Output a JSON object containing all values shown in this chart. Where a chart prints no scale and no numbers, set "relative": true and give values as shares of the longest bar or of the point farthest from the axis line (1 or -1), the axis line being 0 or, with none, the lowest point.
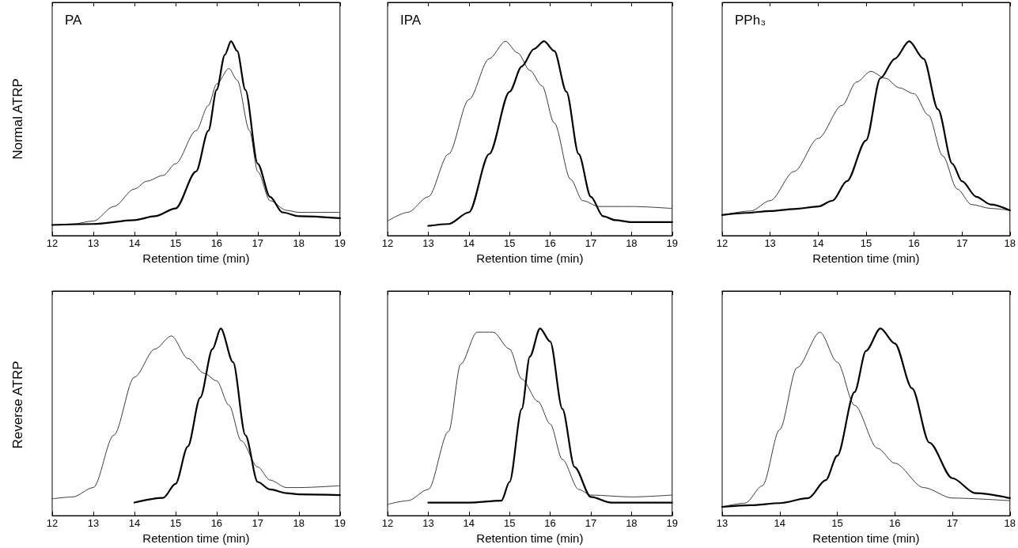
{
  "chart_data": [
    {
      "type": "line",
      "relative": true,
      "annotations": [
        "PA"
      ],
      "ylabel": "Normal ATRP",
      "xlabel": "Retention time (min)",
      "xlim": [
        12,
        19
      ],
      "xticks": [
        12,
        13,
        14,
        15,
        16,
        17,
        18,
        19
      ],
      "grid": false,
      "marker": "none",
      "line_style": "solid",
      "series": [
        {
          "color": "#000000",
          "x": [
            12,
            13,
            14,
            14.5,
            15,
            15.5,
            15.8,
            16.0,
            16.2,
            16.35,
            16.5,
            16.7,
            17.0,
            17.3,
            17.6,
            18,
            19
          ],
          "values": [
            0.055,
            0.06,
            0.08,
            0.1,
            0.14,
            0.33,
            0.54,
            0.75,
            0.93,
            1.0,
            0.95,
            0.75,
            0.37,
            0.2,
            0.12,
            0.1,
            0.09
          ]
        },
        {
          "color": "#3a3a3a",
          "x": [
            12,
            12.5,
            13,
            13.5,
            14,
            14.3,
            14.7,
            15,
            15.5,
            15.8,
            16.0,
            16.3,
            16.5,
            16.8,
            17.0,
            17.3,
            17.7,
            18,
            19
          ],
          "values": [
            0.055,
            0.06,
            0.075,
            0.15,
            0.24,
            0.28,
            0.31,
            0.37,
            0.54,
            0.67,
            0.78,
            0.86,
            0.8,
            0.54,
            0.33,
            0.18,
            0.13,
            0.12,
            0.12
          ]
        }
      ]
    },
    {
      "type": "line",
      "relative": true,
      "annotations": [
        "IPA"
      ],
      "xlabel": "Retention time (min)",
      "xlim": [
        12,
        19
      ],
      "xticks": [
        12,
        13,
        14,
        15,
        16,
        17,
        18,
        19
      ],
      "grid": false,
      "marker": "none",
      "line_style": "solid",
      "series": [
        {
          "color": "#000000",
          "x": [
            13,
            13.5,
            14,
            14.5,
            15,
            15.3,
            15.6,
            15.85,
            16.1,
            16.4,
            16.7,
            17,
            17.3,
            17.6,
            18,
            19
          ],
          "values": [
            0.05,
            0.06,
            0.12,
            0.42,
            0.74,
            0.87,
            0.96,
            1.0,
            0.95,
            0.74,
            0.42,
            0.2,
            0.1,
            0.08,
            0.07,
            0.07
          ]
        },
        {
          "color": "#3a3a3a",
          "x": [
            12,
            12.5,
            13,
            13.5,
            14,
            14.5,
            14.9,
            15.2,
            15.5,
            15.8,
            16.1,
            16.5,
            16.8,
            17.2,
            18,
            19
          ],
          "values": [
            0.075,
            0.12,
            0.2,
            0.42,
            0.7,
            0.91,
            1.0,
            0.94,
            0.85,
            0.77,
            0.58,
            0.29,
            0.18,
            0.15,
            0.15,
            0.14
          ]
        }
      ]
    },
    {
      "type": "line",
      "relative": true,
      "annotations": [
        "PPh₃"
      ],
      "xlabel": "Retention time (min)",
      "xlim": [
        12,
        18
      ],
      "xticks": [
        12,
        13,
        14,
        15,
        16,
        17,
        18
      ],
      "grid": false,
      "marker": "none",
      "line_style": "solid",
      "series": [
        {
          "color": "#000000",
          "x": [
            12,
            12.5,
            13,
            13.5,
            14,
            14.3,
            14.6,
            15,
            15.3,
            15.6,
            15.9,
            16.2,
            16.5,
            16.8,
            17,
            17.3,
            17.6,
            18
          ],
          "values": [
            0.106,
            0.117,
            0.127,
            0.137,
            0.15,
            0.18,
            0.28,
            0.49,
            0.81,
            0.91,
            1.0,
            0.91,
            0.65,
            0.37,
            0.28,
            0.2,
            0.16,
            0.13
          ]
        },
        {
          "color": "#3a3a3a",
          "x": [
            12,
            12.6,
            13,
            13.5,
            14,
            14.5,
            14.8,
            15.1,
            15.4,
            15.7,
            16.0,
            16.3,
            16.6,
            16.9,
            17.2,
            17.6,
            18
          ],
          "values": [
            0.106,
            0.127,
            0.18,
            0.33,
            0.5,
            0.67,
            0.79,
            0.845,
            0.81,
            0.76,
            0.73,
            0.62,
            0.41,
            0.24,
            0.16,
            0.14,
            0.13
          ]
        }
      ]
    },
    {
      "type": "line",
      "relative": true,
      "ylabel": "Reverse ATRP",
      "xlabel": "Retention time (min)",
      "xlim": [
        12,
        19
      ],
      "xticks": [
        12,
        13,
        14,
        15,
        16,
        17,
        18,
        19
      ],
      "grid": false,
      "marker": "none",
      "line_style": "solid",
      "series": [
        {
          "color": "#000000",
          "x": [
            14,
            14.7,
            15,
            15.3,
            15.6,
            15.9,
            16.1,
            16.4,
            16.7,
            17,
            17.3,
            17.7,
            18,
            19
          ],
          "values": [
            0.07,
            0.095,
            0.17,
            0.37,
            0.63,
            0.89,
            1.0,
            0.82,
            0.43,
            0.18,
            0.14,
            0.12,
            0.114,
            0.11
          ]
        },
        {
          "color": "#3a3a3a",
          "x": [
            12,
            12.5,
            13,
            13.5,
            14,
            14.5,
            14.9,
            15.3,
            15.7,
            16,
            16.3,
            16.6,
            17,
            17.3,
            17.7,
            18,
            19
          ],
          "values": [
            0.09,
            0.1,
            0.15,
            0.43,
            0.74,
            0.89,
            0.96,
            0.84,
            0.76,
            0.72,
            0.59,
            0.4,
            0.26,
            0.19,
            0.15,
            0.15,
            0.16
          ]
        }
      ]
    },
    {
      "type": "line",
      "relative": true,
      "xlabel": "Retention time (min)",
      "xlim": [
        12,
        19
      ],
      "xticks": [
        12,
        13,
        14,
        15,
        16,
        17,
        18,
        19
      ],
      "grid": false,
      "marker": "none",
      "line_style": "solid",
      "series": [
        {
          "color": "#000000",
          "x": [
            13,
            14,
            14.8,
            15,
            15.3,
            15.5,
            15.75,
            16,
            16.3,
            16.6,
            17,
            17.5,
            19
          ],
          "values": [
            0.07,
            0.07,
            0.08,
            0.18,
            0.57,
            0.85,
            1.0,
            0.93,
            0.57,
            0.26,
            0.1,
            0.07,
            0.07
          ]
        },
        {
          "color": "#3a3a3a",
          "x": [
            12,
            12.5,
            13,
            13.5,
            13.8,
            14.2,
            14.6,
            15,
            15.3,
            15.7,
            16,
            16.3,
            16.7,
            17,
            18,
            19
          ],
          "values": [
            0.06,
            0.08,
            0.14,
            0.45,
            0.81,
            0.98,
            0.98,
            0.89,
            0.73,
            0.61,
            0.49,
            0.3,
            0.14,
            0.11,
            0.1,
            0.11
          ]
        }
      ]
    },
    {
      "type": "line",
      "relative": true,
      "xlabel": "Retention time (min)",
      "xlim": [
        13,
        18
      ],
      "xticks": [
        13,
        14,
        15,
        16,
        17,
        18
      ],
      "grid": false,
      "marker": "none",
      "line_style": "solid",
      "series": [
        {
          "color": "#000000",
          "x": [
            13,
            13.5,
            14,
            14.5,
            14.8,
            15,
            15.3,
            15.5,
            15.75,
            16,
            16.3,
            16.6,
            17,
            17.4,
            18
          ],
          "values": [
            0.047,
            0.056,
            0.067,
            0.094,
            0.19,
            0.32,
            0.66,
            0.88,
            1.0,
            0.92,
            0.68,
            0.39,
            0.2,
            0.12,
            0.094
          ]
        },
        {
          "color": "#3a3a3a",
          "x": [
            13,
            13.4,
            13.7,
            14,
            14.3,
            14.7,
            15,
            15.3,
            15.7,
            16,
            16.5,
            17,
            18
          ],
          "values": [
            0.047,
            0.067,
            0.16,
            0.46,
            0.79,
            0.98,
            0.82,
            0.59,
            0.36,
            0.28,
            0.15,
            0.094,
            0.08
          ]
        }
      ]
    }
  ]
}
